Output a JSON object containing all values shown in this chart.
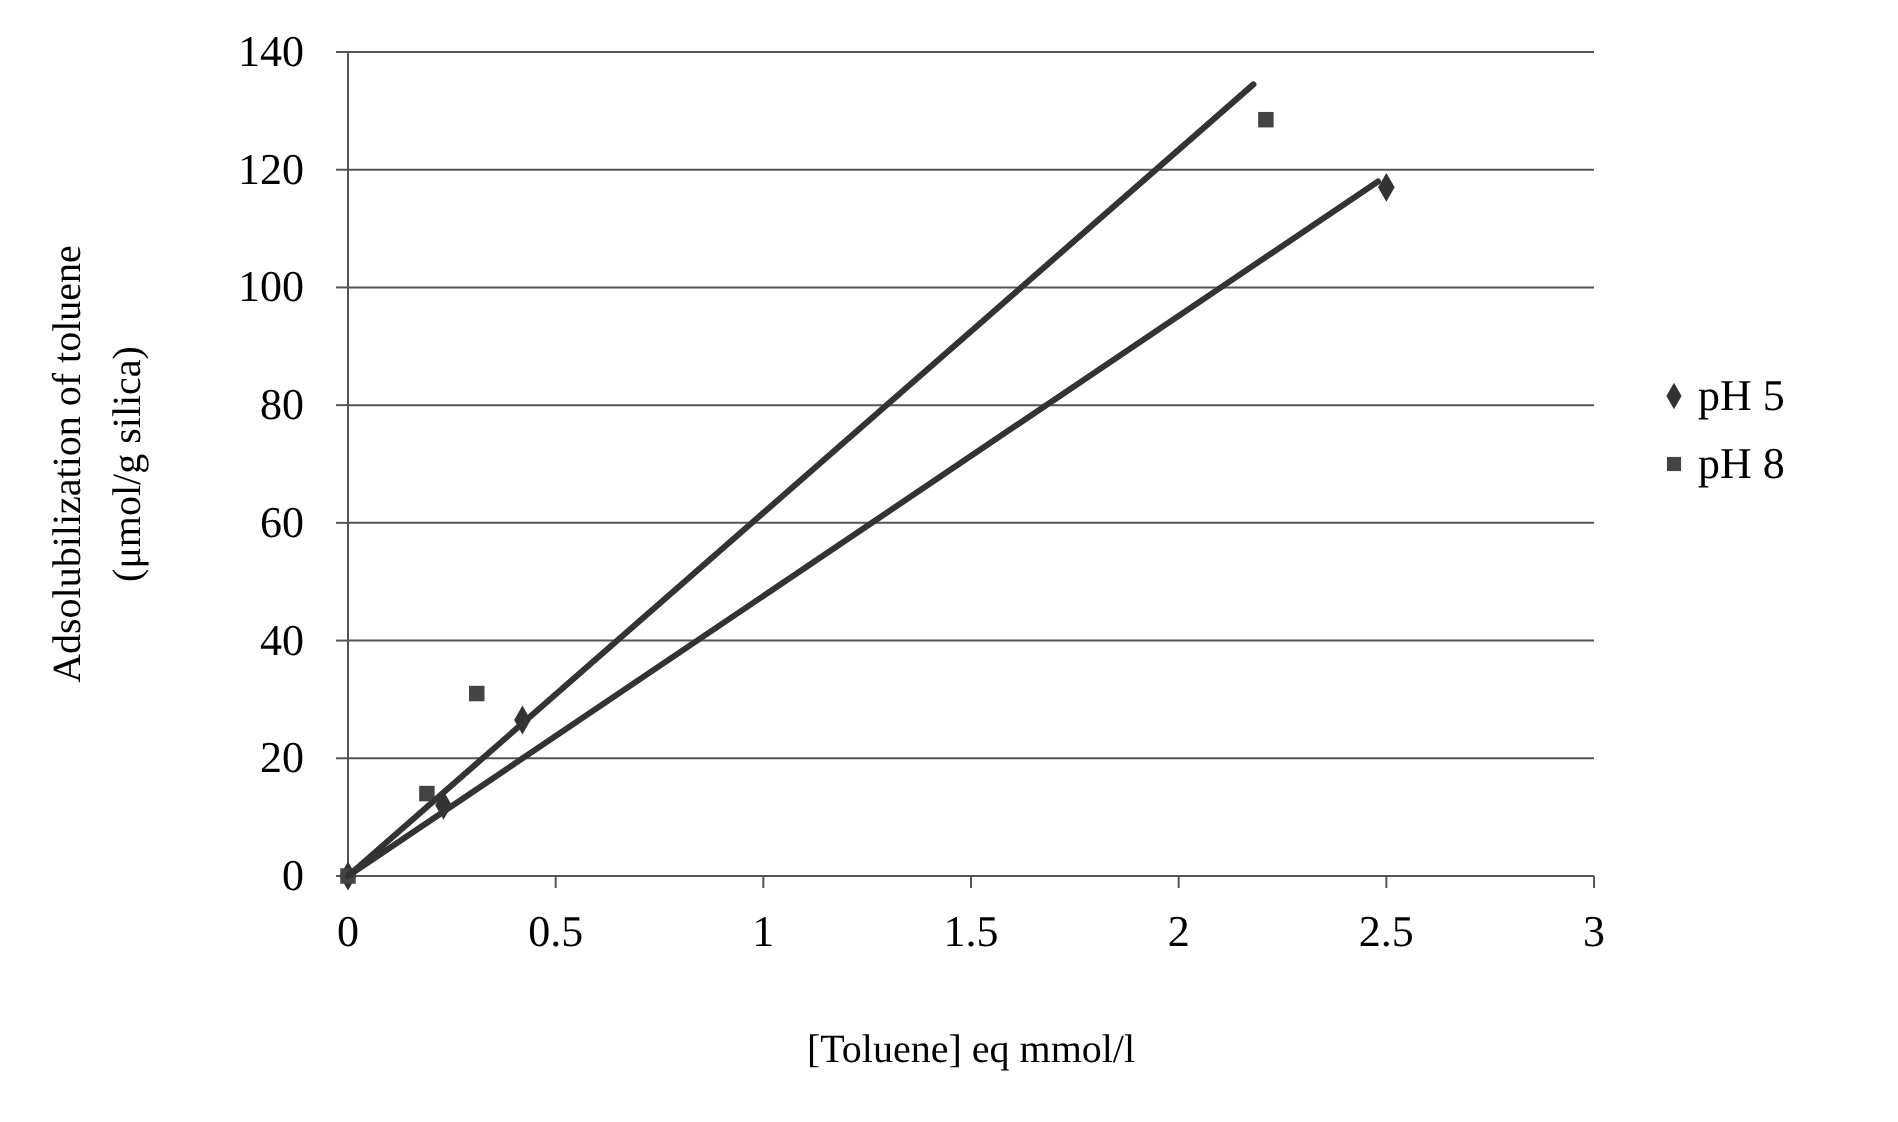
{
  "chart_data": {
    "type": "scatter",
    "xlabel": "[Toluene] eq mmol/l",
    "ylabel": "Adsolubilization of toluene\n(μmol/g silica)",
    "series": [
      {
        "name": "pH 5",
        "color": "#333333",
        "marker": "diamond",
        "x": [
          0,
          0.23,
          0.42,
          2.5
        ],
        "values": [
          0,
          12,
          26.5,
          117
        ]
      },
      {
        "name": "pH 8",
        "color": "#444444",
        "marker": "square",
        "x": [
          0,
          0.19,
          0.31,
          2.21
        ],
        "values": [
          0,
          14,
          31,
          128.5
        ]
      },
      {
        "type": "line",
        "color": "#333333",
        "marker": "none",
        "x": [
          0,
          2.48
        ],
        "values": [
          0,
          118
        ]
      },
      {
        "type": "line",
        "color": "#333333",
        "marker": "none",
        "x": [
          0,
          2.18
        ],
        "values": [
          0,
          134.5
        ]
      }
    ],
    "xlim": [
      0,
      3
    ],
    "xticks": [
      0,
      0.5,
      1,
      1.5,
      2,
      2.5,
      3
    ],
    "ylim": [
      0,
      140
    ],
    "yticks": [
      0,
      20,
      40,
      60,
      80,
      100,
      120,
      140
    ],
    "grid": "y",
    "legend": "right",
    "line_style": "solid"
  }
}
